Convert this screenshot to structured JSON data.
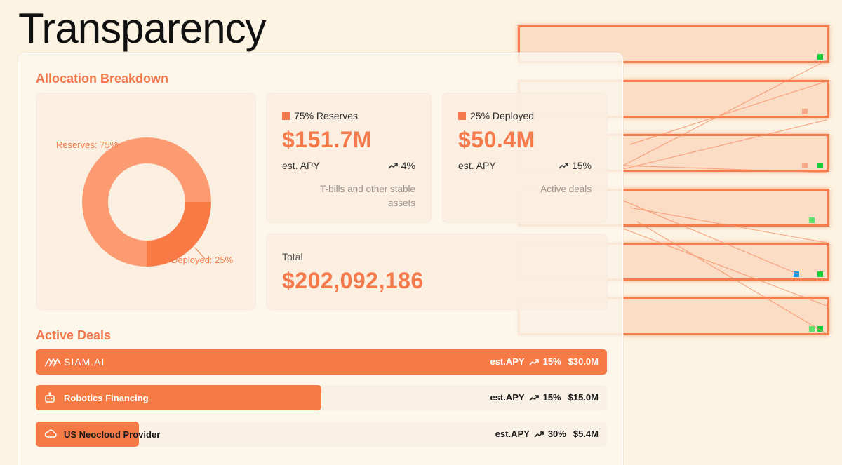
{
  "page": {
    "title": "Transparency"
  },
  "allocation": {
    "title": "Allocation Breakdown",
    "chart": {
      "type": "pie",
      "slices": [
        {
          "label": "Reserves: 75%",
          "value": 75,
          "color": "#fc9a71"
        },
        {
          "label": "Deployed: 25%",
          "value": 25,
          "color": "#f97a45"
        }
      ]
    },
    "reserves": {
      "legend": "75% Reserves",
      "amount": "$151.7M",
      "apy_label": "est. APY",
      "apy_value": "4%",
      "description": "T-bills and other stable assets",
      "color": "#f57a4b"
    },
    "deployed": {
      "legend": "25% Deployed",
      "amount": "$50.4M",
      "apy_label": "est. APY",
      "apy_value": "15%",
      "description": "Active deals",
      "color": "#f57a4b"
    },
    "total": {
      "label": "Total",
      "amount": "$202,092,186"
    }
  },
  "active_deals": {
    "title": "Active Deals",
    "deals": [
      {
        "name": "SIAM.AI",
        "apy_label": "est.APY",
        "apy_value": "15%",
        "amount": "$30.0M",
        "fill_fraction": 1.0,
        "icon": "siam-logo"
      },
      {
        "name": "Robotics Financing",
        "apy_label": "est.APY",
        "apy_value": "15%",
        "amount": "$15.0M",
        "fill_fraction": 0.5,
        "icon": "robot-icon"
      },
      {
        "name": "US Neocloud Provider",
        "apy_label": "est.APY",
        "apy_value": "30%",
        "amount": "$5.4M",
        "fill_fraction": 0.18,
        "icon": "cloud-icon"
      }
    ]
  },
  "colors": {
    "accent": "#f57a4b",
    "background": "#fcf3e3"
  }
}
